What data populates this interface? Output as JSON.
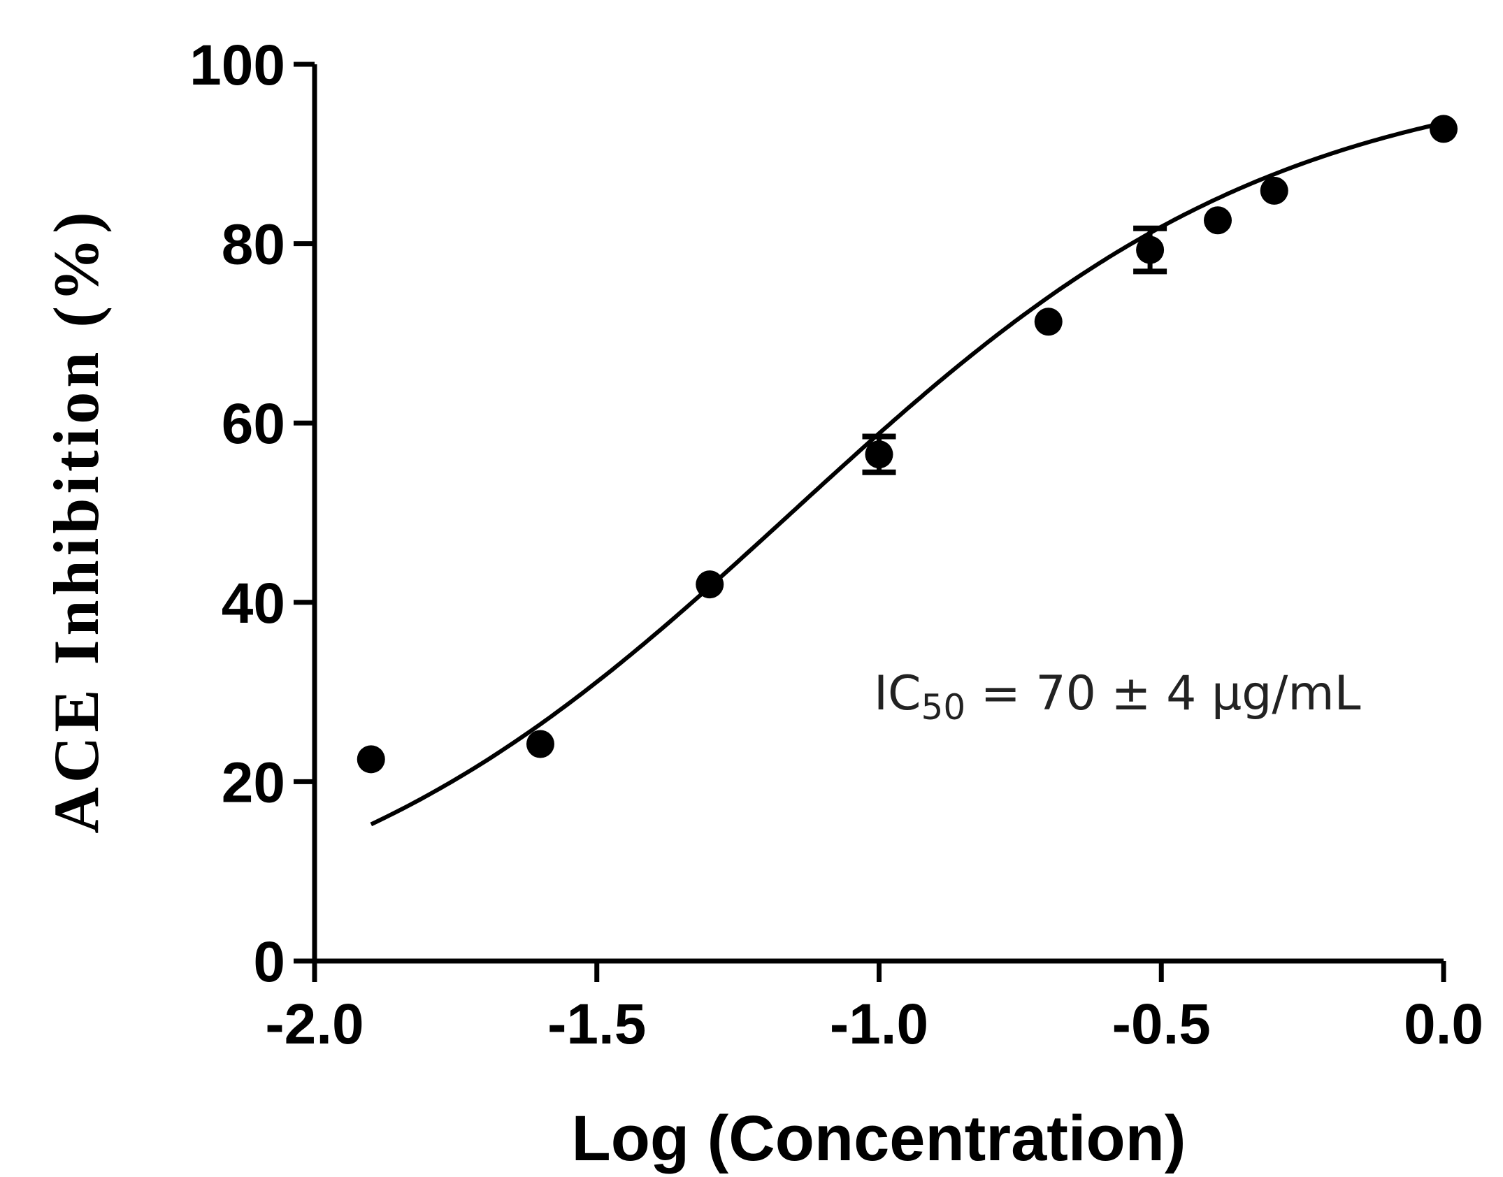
{
  "chart_data": {
    "type": "scatter",
    "xlabel": "Log (Concentration)",
    "ylabel": "ACE Inhibition (%)",
    "xlim": [
      -2.0,
      0.0
    ],
    "ylim": [
      0,
      100
    ],
    "x_ticks": [
      "-2.0",
      "-1.5",
      "-1.0",
      "-0.5",
      "0.0"
    ],
    "y_ticks": [
      "0",
      "20",
      "40",
      "60",
      "80",
      "100"
    ],
    "grid": false,
    "legend": "none",
    "points": [
      {
        "x": -1.9,
        "y": 22.5,
        "err": 0.5
      },
      {
        "x": -1.6,
        "y": 24.2,
        "err": 0.5
      },
      {
        "x": -1.3,
        "y": 42.0,
        "err": 0.5
      },
      {
        "x": -1.0,
        "y": 56.5,
        "err": 2.0
      },
      {
        "x": -0.7,
        "y": 71.3,
        "err": 0.5
      },
      {
        "x": -0.52,
        "y": 79.3,
        "err": 2.4
      },
      {
        "x": -0.4,
        "y": 82.6,
        "err": 0.5
      },
      {
        "x": -0.3,
        "y": 85.9,
        "err": 0.5
      },
      {
        "x": 0.0,
        "y": 92.8,
        "err": 0.6
      }
    ],
    "fit_curve": {
      "type": "sigmoid",
      "bottom": 0,
      "top": 100,
      "logIC50": -1.155,
      "hill": 1.0,
      "x_range": [
        -1.9,
        0.0
      ]
    },
    "annotation": {
      "prefix": "IC",
      "subscript": "50",
      "suffix": " = 70 ± 4 μg/mL"
    },
    "colors": {
      "marks": "#000000",
      "text": "#000000",
      "annotation": "#222222"
    }
  }
}
